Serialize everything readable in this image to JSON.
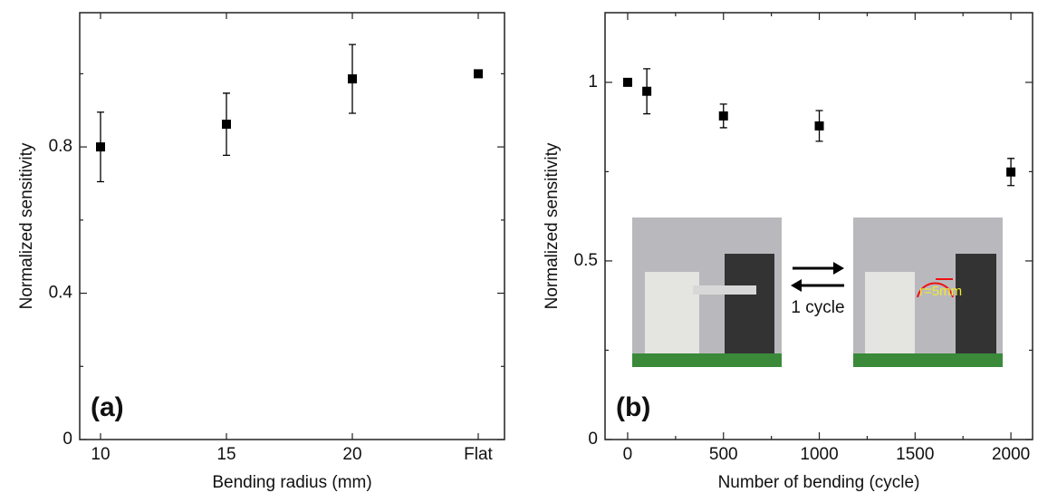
{
  "chart_data": [
    {
      "type": "scatter",
      "panel_label": "(a)",
      "x_label": "Bending radius (mm)",
      "y_label": "Normalized sensitivity",
      "categories": [
        "10",
        "15",
        "20",
        "Flat"
      ],
      "series": [
        {
          "color": "#000000",
          "values": [
            0.8,
            0.862,
            0.986,
            1.0
          ],
          "errors": [
            0.095,
            0.085,
            0.094,
            null
          ]
        }
      ],
      "ylim": [
        0,
        1.167
      ],
      "yticks": [
        0,
        0.4,
        0.8
      ],
      "yticks_minor": [
        0.2,
        0.6,
        1.0
      ]
    },
    {
      "type": "scatter",
      "panel_label": "(b)",
      "x_label": "Number of bending (cycle)",
      "y_label": "Normalized sensitivity",
      "x": [
        0,
        100,
        500,
        1000,
        2000
      ],
      "series": [
        {
          "color": "#000000",
          "values": [
            1.0,
            0.975,
            0.906,
            0.878,
            0.749
          ],
          "errors": [
            null,
            0.063,
            0.033,
            0.043,
            0.038
          ]
        }
      ],
      "xlim": [
        -118,
        2113
      ],
      "xticks": [
        0,
        500,
        1000,
        1500,
        2000
      ],
      "xticks_minor": [
        250,
        750,
        1250,
        1750
      ],
      "ylim": [
        0,
        1.195
      ],
      "yticks": [
        0,
        0.5,
        1
      ],
      "yticks_minor": [
        0.25,
        0.75
      ],
      "annotations": [
        "1 cycle",
        "r=5mm"
      ]
    }
  ]
}
